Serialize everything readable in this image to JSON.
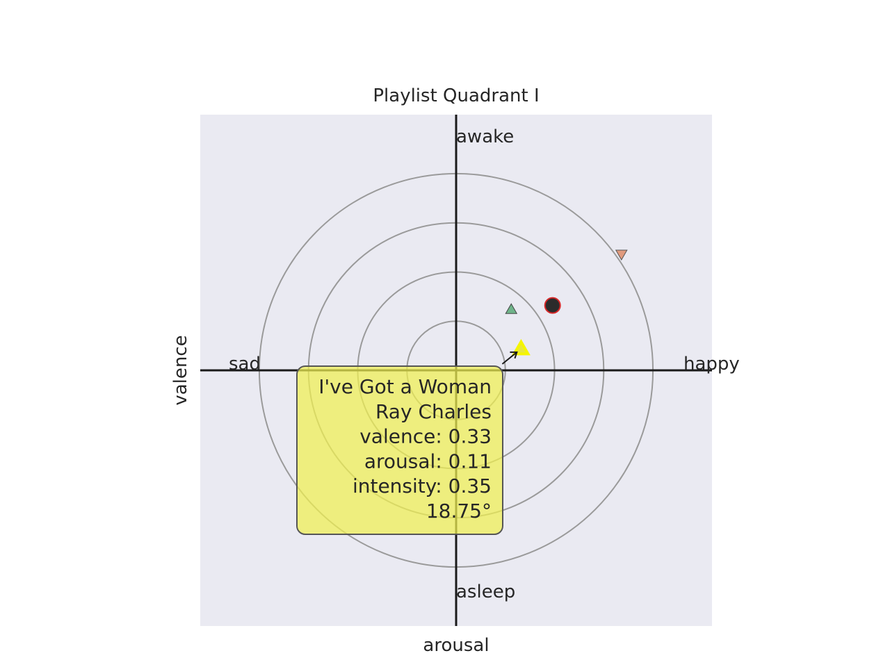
{
  "chart_data": {
    "type": "scatter",
    "title": "Playlist Quadrant I",
    "xlabel": "arousal",
    "ylabel": "valence",
    "xlim": [
      -1.3,
      1.3
    ],
    "ylim": [
      -1.3,
      1.3
    ],
    "grid": false,
    "background": "#EAEAF2",
    "quadrant_labels": {
      "top": "awake",
      "bottom": "asleep",
      "left": "sad",
      "right": "happy"
    },
    "rings": [
      0.25,
      0.5,
      0.75,
      1.0
    ],
    "points": [
      {
        "x": 0.33,
        "y": 0.11,
        "marker": "triangle-up",
        "color": "#E8E83C",
        "highlighted": true
      },
      {
        "x": 0.28,
        "y": 0.31,
        "marker": "triangle-up",
        "color": "#6FB48A",
        "highlighted": false
      },
      {
        "x": 0.49,
        "y": 0.33,
        "marker": "circle",
        "color": "#2B2B2B",
        "edge": "#D62728",
        "highlighted": false
      },
      {
        "x": 0.84,
        "y": 0.59,
        "marker": "triangle-down",
        "color": "#E09A7E",
        "highlighted": false
      }
    ],
    "annotation": {
      "lines": [
        "I've Got a Woman",
        "Ray Charles",
        "valence:  0.33",
        "arousal:  0.11",
        "intensity:  0.35",
        "18.75°"
      ],
      "box_color": "#F0F050"
    }
  }
}
